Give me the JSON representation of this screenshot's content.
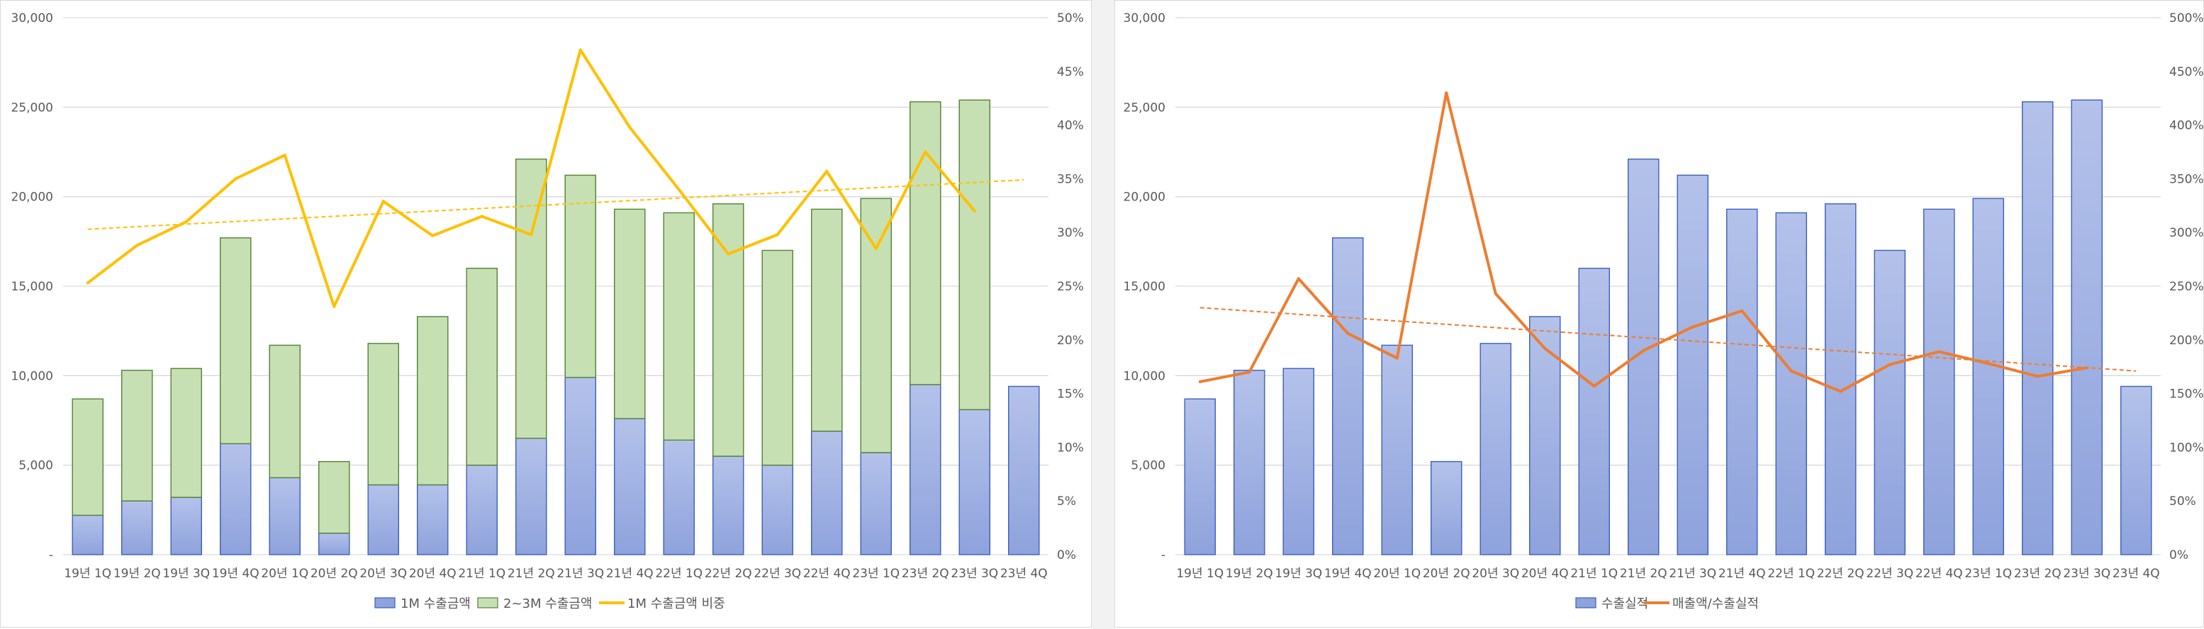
{
  "chart_data": [
    {
      "type": "bar",
      "stacked": true,
      "categories": [
        "19년 1Q",
        "19년 2Q",
        "19년 3Q",
        "19년 4Q",
        "20년 1Q",
        "20년 2Q",
        "20년 3Q",
        "20년 4Q",
        "21년 1Q",
        "21년 2Q",
        "21년 3Q",
        "21년 4Q",
        "22년 1Q",
        "22년 2Q",
        "22년 3Q",
        "22년 4Q",
        "23년 1Q",
        "23년 2Q",
        "23년 3Q",
        "23년 4Q"
      ],
      "series": [
        {
          "name": "1M 수출금액",
          "kind": "bar",
          "axis": "left",
          "values": [
            2200,
            3000,
            3200,
            6200,
            4300,
            1200,
            3900,
            3900,
            5000,
            6500,
            9900,
            7600,
            6400,
            5500,
            5000,
            6900,
            5700,
            9500,
            8100,
            9400
          ],
          "color": "#8ea2dc"
        },
        {
          "name": "2~3M 수출금액",
          "kind": "bar",
          "axis": "left",
          "values": [
            6500,
            7300,
            7200,
            11500,
            7400,
            4000,
            7900,
            9400,
            11000,
            15600,
            11300,
            11700,
            12700,
            14100,
            12000,
            12400,
            14200,
            15800,
            17300,
            0
          ],
          "color": "#c6e0b4"
        },
        {
          "name": "1M 수출금액 비중",
          "kind": "line",
          "axis": "right",
          "values": [
            25.3,
            28.8,
            31.0,
            35.0,
            37.2,
            23.1,
            32.9,
            29.7,
            31.5,
            29.8,
            47.0,
            39.8,
            34.0,
            28.0,
            29.8,
            35.7,
            28.5,
            37.5,
            32.0,
            null
          ],
          "color": "#ffc000"
        }
      ],
      "trendline": {
        "series": "1M 수출금액 비중",
        "start": 30.3,
        "end": 34.9,
        "color": "#ffc000"
      },
      "ylim": [
        0,
        30000
      ],
      "yticks": [
        "-",
        "5,000",
        "10,000",
        "15,000",
        "20,000",
        "25,000",
        "30,000"
      ],
      "y2lim": [
        0,
        50
      ],
      "y2ticks": [
        "0%",
        "5%",
        "10%",
        "15%",
        "20%",
        "25%",
        "30%",
        "35%",
        "40%",
        "45%",
        "50%"
      ],
      "legend_position": "bottom",
      "grid": true
    },
    {
      "type": "bar",
      "categories": [
        "19년 1Q",
        "19년 2Q",
        "19년 3Q",
        "19년 4Q",
        "20년 1Q",
        "20년 2Q",
        "20년 3Q",
        "20년 4Q",
        "21년 1Q",
        "21년 2Q",
        "21년 3Q",
        "21년 4Q",
        "22년 1Q",
        "22년 2Q",
        "22년 3Q",
        "22년 4Q",
        "23년 1Q",
        "23년 2Q",
        "23년 3Q",
        "23년 4Q"
      ],
      "series": [
        {
          "name": "수출실적",
          "kind": "bar",
          "axis": "left",
          "values": [
            8700,
            10300,
            10400,
            17700,
            11700,
            5200,
            11800,
            13300,
            16000,
            22100,
            21200,
            19300,
            19100,
            19600,
            17000,
            19300,
            19900,
            25300,
            25400,
            9400
          ],
          "color": "#8ea2dc"
        },
        {
          "name": "매출액/수출실적",
          "kind": "line",
          "axis": "right",
          "values": [
            161,
            170,
            257,
            206,
            183,
            430,
            243,
            192,
            157,
            190,
            212,
            227,
            171,
            152,
            177,
            189,
            178,
            166,
            174,
            null
          ],
          "color": "#ed7d31"
        }
      ],
      "trendline": {
        "series": "매출액/수출실적",
        "start": 230,
        "end": 171,
        "color": "#ed7d31"
      },
      "ylim": [
        0,
        30000
      ],
      "yticks": [
        "-",
        "5,000",
        "10,000",
        "15,000",
        "20,000",
        "25,000",
        "30,000"
      ],
      "y2lim": [
        0,
        500
      ],
      "y2ticks": [
        "0%",
        "50%",
        "100%",
        "150%",
        "200%",
        "250%",
        "300%",
        "350%",
        "400%",
        "450%",
        "500%"
      ],
      "legend_position": "bottom",
      "grid": true
    }
  ]
}
